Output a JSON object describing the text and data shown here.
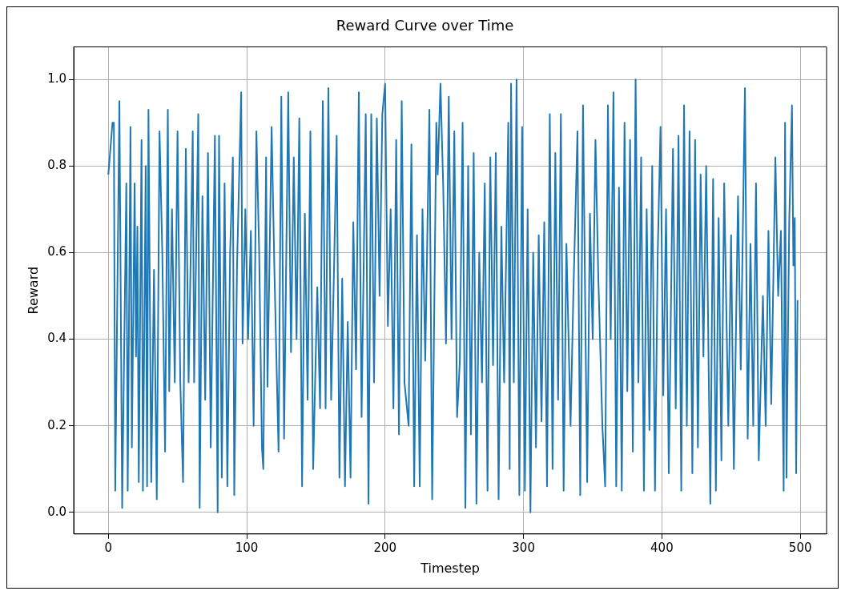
{
  "chart_data": {
    "type": "line",
    "title": "Reward Curve over Time",
    "xlabel": "Timestep",
    "ylabel": "Reward",
    "xlim": [
      -25,
      519
    ],
    "ylim": [
      -0.05,
      1.075
    ],
    "xticks": [
      0,
      100,
      200,
      300,
      400,
      500
    ],
    "yticks": [
      {
        "value": 0,
        "label": "0.0"
      },
      {
        "value": 0.2,
        "label": "0.2"
      },
      {
        "value": 0.4,
        "label": "0.4"
      },
      {
        "value": 0.6,
        "label": "0.6"
      },
      {
        "value": 0.8,
        "label": "0.8"
      },
      {
        "value": 1,
        "label": "1.0"
      }
    ],
    "grid": true,
    "marker": "none",
    "series": [
      {
        "color": "#1f77b4",
        "x": [
          0,
          3,
          4,
          5,
          8,
          10,
          13,
          14,
          16,
          17,
          19,
          20,
          21,
          22,
          24,
          25,
          27,
          28,
          29,
          31,
          33,
          35,
          37,
          39,
          41,
          43,
          44,
          46,
          48,
          50,
          52,
          54,
          56,
          58,
          61,
          62,
          65,
          66,
          68,
          70,
          72,
          74,
          77,
          79,
          80,
          82,
          84,
          86,
          88,
          90,
          91,
          93,
          96,
          97,
          99,
          101,
          103,
          105,
          107,
          109,
          111,
          112,
          114,
          115,
          118,
          120,
          123,
          125,
          127,
          130,
          132,
          134,
          136,
          138,
          140,
          142,
          144,
          146,
          148,
          151,
          153,
          155,
          157,
          159,
          161,
          163,
          165,
          167,
          169,
          171,
          173,
          175,
          177,
          179,
          181,
          183,
          186,
          188,
          190,
          192,
          194,
          196,
          198,
          200,
          202,
          204,
          206,
          208,
          210,
          212,
          214,
          217,
          219,
          221,
          223,
          225,
          227,
          229,
          232,
          234,
          237,
          238,
          240,
          242,
          244,
          246,
          248,
          250,
          252,
          254,
          256,
          258,
          260,
          262,
          264,
          266,
          268,
          270,
          272,
          274,
          276,
          278,
          280,
          282,
          284,
          286,
          289,
          290,
          291,
          293,
          295,
          297,
          299,
          301,
          303,
          305,
          307,
          309,
          311,
          313,
          315,
          317,
          319,
          321,
          323,
          325,
          327,
          329,
          331,
          334,
          336,
          339,
          341,
          343,
          346,
          348,
          350,
          352,
          354,
          357,
          359,
          361,
          363,
          365,
          367,
          369,
          371,
          373,
          375,
          377,
          379,
          381,
          383,
          385,
          387,
          389,
          391,
          393,
          395,
          397,
          399,
          401,
          403,
          405,
          408,
          410,
          412,
          414,
          416,
          418,
          420,
          422,
          424,
          426,
          428,
          430,
          432,
          435,
          437,
          439,
          441,
          443,
          445,
          448,
          450,
          452,
          455,
          457,
          460,
          462,
          464,
          466,
          468,
          470,
          473,
          475,
          477,
          479,
          482,
          484,
          486,
          488,
          489,
          490,
          492,
          494,
          495,
          496,
          497,
          498
        ],
        "values": [
          0.78,
          0.9,
          0.9,
          0.05,
          0.95,
          0.01,
          0.76,
          0.05,
          0.89,
          0.15,
          0.76,
          0.36,
          0.66,
          0.07,
          0.86,
          0.05,
          0.8,
          0.06,
          0.93,
          0.07,
          0.56,
          0.03,
          0.88,
          0.6,
          0.14,
          0.93,
          0.28,
          0.7,
          0.3,
          0.88,
          0.3,
          0.07,
          0.84,
          0.3,
          0.88,
          0.3,
          0.92,
          0.01,
          0.73,
          0.26,
          0.83,
          0.15,
          0.87,
          0.0,
          0.87,
          0.08,
          0.76,
          0.06,
          0.6,
          0.82,
          0.04,
          0.57,
          0.97,
          0.39,
          0.7,
          0.4,
          0.65,
          0.2,
          0.88,
          0.6,
          0.15,
          0.1,
          0.82,
          0.29,
          0.89,
          0.56,
          0.14,
          0.96,
          0.17,
          0.97,
          0.37,
          0.82,
          0.4,
          0.91,
          0.06,
          0.69,
          0.26,
          0.88,
          0.1,
          0.52,
          0.24,
          0.95,
          0.24,
          0.98,
          0.26,
          0.55,
          0.87,
          0.08,
          0.54,
          0.06,
          0.44,
          0.08,
          0.67,
          0.33,
          0.97,
          0.22,
          0.92,
          0.02,
          0.92,
          0.3,
          0.91,
          0.5,
          0.92,
          0.99,
          0.43,
          0.7,
          0.24,
          0.86,
          0.18,
          0.95,
          0.3,
          0.2,
          0.85,
          0.06,
          0.64,
          0.06,
          0.7,
          0.35,
          0.93,
          0.03,
          0.9,
          0.78,
          0.99,
          0.75,
          0.39,
          0.96,
          0.4,
          0.88,
          0.22,
          0.35,
          0.9,
          0.01,
          0.8,
          0.18,
          0.83,
          0.02,
          0.6,
          0.3,
          0.76,
          0.05,
          0.82,
          0.34,
          0.83,
          0.03,
          0.66,
          0.3,
          0.9,
          0.1,
          0.99,
          0.3,
          1.0,
          0.04,
          0.89,
          0.05,
          0.7,
          0.0,
          0.6,
          0.15,
          0.64,
          0.21,
          0.67,
          0.06,
          0.92,
          0.1,
          0.83,
          0.26,
          0.92,
          0.05,
          0.62,
          0.2,
          0.5,
          0.88,
          0.04,
          0.94,
          0.07,
          0.69,
          0.4,
          0.86,
          0.55,
          0.2,
          0.06,
          0.94,
          0.4,
          0.97,
          0.06,
          0.75,
          0.05,
          0.9,
          0.28,
          0.86,
          0.14,
          1.0,
          0.3,
          0.82,
          0.05,
          0.7,
          0.19,
          0.8,
          0.05,
          0.6,
          0.89,
          0.27,
          0.7,
          0.09,
          0.84,
          0.24,
          0.87,
          0.05,
          0.94,
          0.2,
          0.88,
          0.09,
          0.86,
          0.15,
          0.78,
          0.36,
          0.8,
          0.02,
          0.77,
          0.05,
          0.68,
          0.12,
          0.76,
          0.2,
          0.64,
          0.1,
          0.73,
          0.33,
          0.98,
          0.17,
          0.62,
          0.2,
          0.76,
          0.12,
          0.5,
          0.2,
          0.65,
          0.25,
          0.82,
          0.5,
          0.65,
          0.05,
          0.9,
          0.08,
          0.67,
          0.94,
          0.57,
          0.68,
          0.09,
          0.49
        ]
      }
    ]
  }
}
